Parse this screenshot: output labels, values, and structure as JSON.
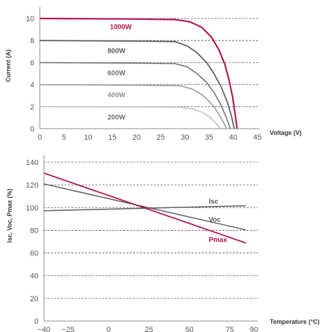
{
  "colors": {
    "accent": "#b5124f",
    "axis": "#888888",
    "grid": "#555555",
    "text": "#555555"
  },
  "chart_data": [
    {
      "type": "line",
      "xlabel": "Voltage (V)",
      "ylabel": "Current (A)",
      "xlim": [
        0,
        45
      ],
      "ylim": [
        0,
        10
      ],
      "x_ticks": [
        "0",
        "5",
        "10",
        "15",
        "20",
        "25",
        "30",
        "35",
        "40",
        "45"
      ],
      "y_ticks": [
        "0",
        "2",
        "4",
        "6",
        "8",
        "10"
      ],
      "grid": "horizontal dashed",
      "series": [
        {
          "name": "1000W",
          "color": "#b5124f",
          "width": 2.2,
          "label_at": [
            14.5,
            9.3
          ],
          "points": [
            [
              0,
              10.0
            ],
            [
              20,
              9.95
            ],
            [
              28,
              9.9
            ],
            [
              31,
              9.7
            ],
            [
              33.5,
              9.2
            ],
            [
              35.5,
              8.3
            ],
            [
              37,
              7.2
            ],
            [
              38.3,
              5.8
            ],
            [
              39.2,
              4.3
            ],
            [
              39.9,
              2.8
            ],
            [
              40.4,
              1.3
            ],
            [
              40.8,
              0
            ]
          ]
        },
        {
          "name": "800W",
          "color": "#5a5a5a",
          "width": 1.8,
          "label_at": [
            14,
            7.1
          ],
          "points": [
            [
              0,
              8.0
            ],
            [
              20,
              7.95
            ],
            [
              28,
              7.9
            ],
            [
              30.5,
              7.5
            ],
            [
              32.5,
              6.9
            ],
            [
              34.5,
              6.0
            ],
            [
              36,
              5.0
            ],
            [
              37.5,
              3.8
            ],
            [
              38.8,
              2.4
            ],
            [
              39.6,
              1.2
            ],
            [
              40.2,
              0
            ]
          ]
        },
        {
          "name": "600W",
          "color": "#707070",
          "width": 1.6,
          "label_at": [
            14,
            5.1
          ],
          "points": [
            [
              0,
              6.0
            ],
            [
              20,
              5.95
            ],
            [
              28,
              5.9
            ],
            [
              30.5,
              5.6
            ],
            [
              32.5,
              5.0
            ],
            [
              34.5,
              4.2
            ],
            [
              36,
              3.3
            ],
            [
              37.3,
              2.3
            ],
            [
              38.3,
              1.3
            ],
            [
              39,
              0.5
            ],
            [
              39.4,
              0
            ]
          ]
        },
        {
          "name": "400W",
          "color": "#909090",
          "width": 1.5,
          "label_at": [
            14,
            3.1
          ],
          "points": [
            [
              0,
              4.0
            ],
            [
              20,
              3.95
            ],
            [
              29,
              3.9
            ],
            [
              31.5,
              3.6
            ],
            [
              33.5,
              3.1
            ],
            [
              35,
              2.5
            ],
            [
              36.3,
              1.8
            ],
            [
              37.3,
              1.1
            ],
            [
              38.2,
              0.4
            ],
            [
              38.6,
              0
            ]
          ]
        },
        {
          "name": "200W",
          "color": "#bdbdbd",
          "width": 1.5,
          "label_at": [
            14,
            1.1
          ],
          "points": [
            [
              0,
              2.0
            ],
            [
              20,
              1.98
            ],
            [
              29,
              1.95
            ],
            [
              31.5,
              1.8
            ],
            [
              33.5,
              1.5
            ],
            [
              35,
              1.1
            ],
            [
              36.2,
              0.6
            ],
            [
              37,
              0.2
            ],
            [
              37.4,
              0
            ]
          ]
        }
      ]
    },
    {
      "type": "line",
      "xlabel": "Temperature (°C)",
      "ylabel": "Isc, Voc, Pmax (%)",
      "xlim": [
        -40,
        90
      ],
      "ylim": [
        0,
        140
      ],
      "x_ticks": [
        "−40",
        "−25",
        "0",
        "25",
        "50",
        "75",
        "90"
      ],
      "x_tick_values": [
        -40,
        -25,
        0,
        25,
        50,
        75,
        90
      ],
      "y_ticks": [
        "0",
        "20",
        "40",
        "60",
        "80",
        "100",
        "120",
        "140"
      ],
      "grid": "horizontal dashed",
      "series": [
        {
          "name": "Isc",
          "color": "#5a5a5a",
          "width": 1.5,
          "label_at": [
            62,
            106
          ],
          "points": [
            [
              -40,
              97.2
            ],
            [
              85,
              101.6
            ]
          ]
        },
        {
          "name": "Voc",
          "color": "#5a5a5a",
          "width": 1.5,
          "label_at": [
            62,
            90
          ],
          "points": [
            [
              -40,
              120.9
            ],
            [
              85,
              80.4
            ]
          ]
        },
        {
          "name": "Pmax",
          "color": "#b5124f",
          "width": 1.8,
          "label_at": [
            62,
            72
          ],
          "points": [
            [
              -40,
              130.4
            ],
            [
              85,
              68.8
            ]
          ]
        }
      ]
    }
  ]
}
